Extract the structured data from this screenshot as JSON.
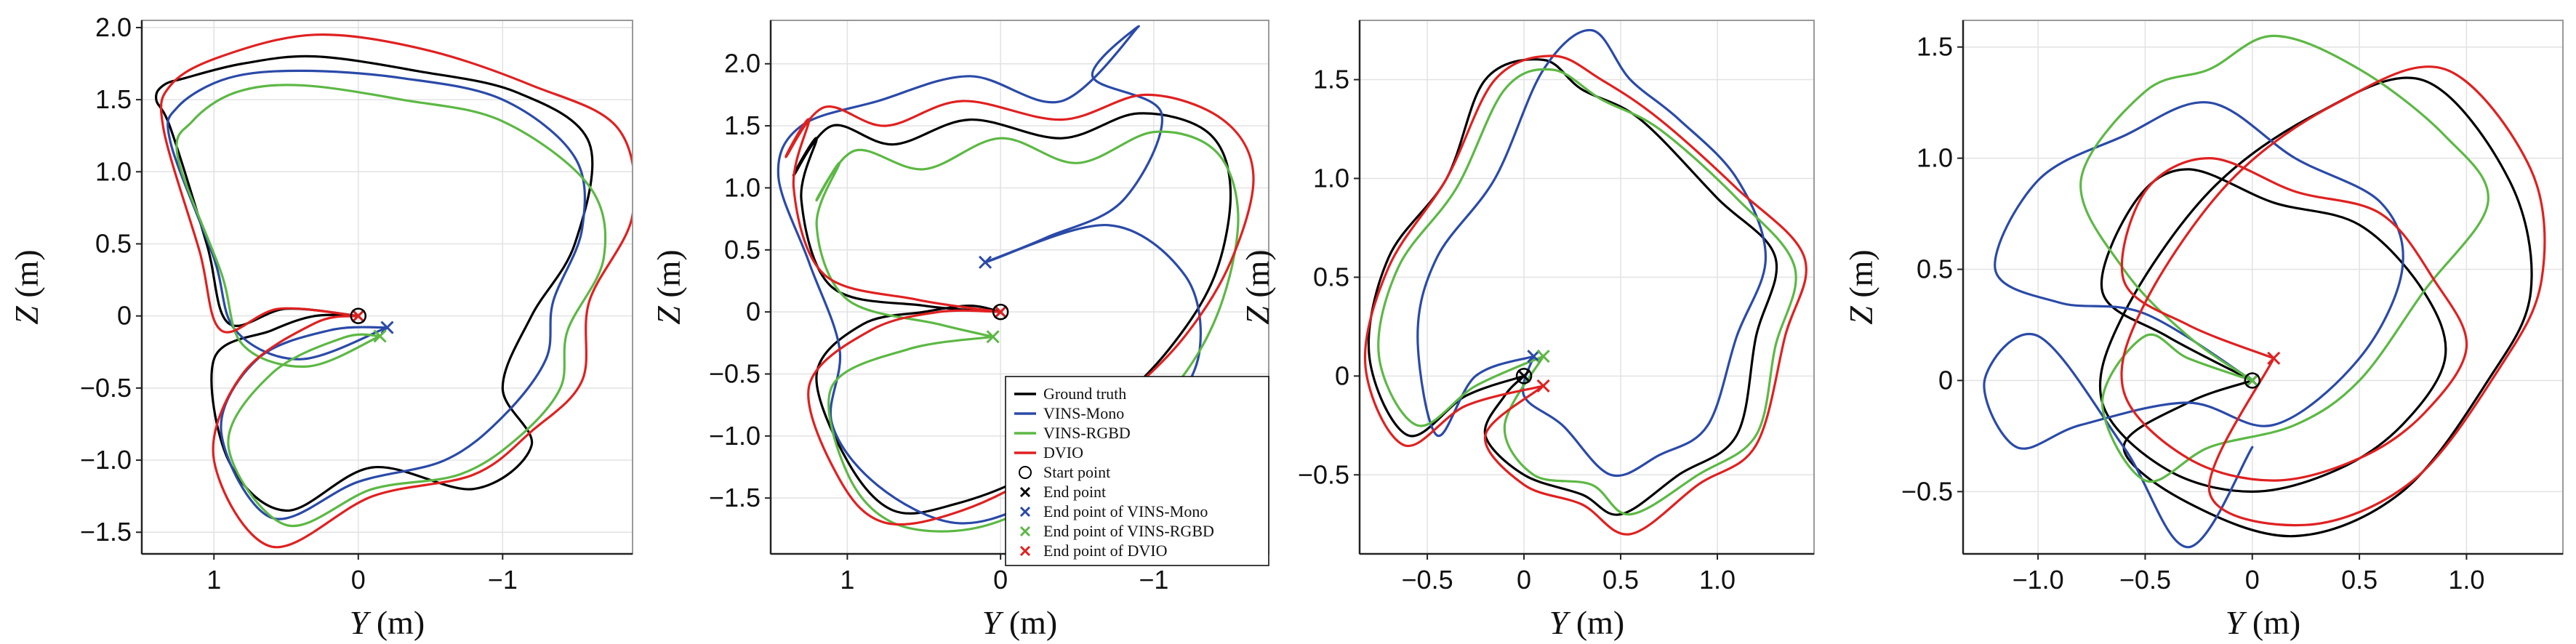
{
  "legend": {
    "entries": [
      {
        "label": "Ground truth",
        "kind": "line",
        "color": "#000000"
      },
      {
        "label": "VINS-Mono",
        "kind": "line",
        "color": "#2a4aa8"
      },
      {
        "label": "VINS-RGBD",
        "kind": "line",
        "color": "#5cb844"
      },
      {
        "label": "DVIO",
        "kind": "line",
        "color": "#e02020"
      },
      {
        "label": "Start point",
        "kind": "circle",
        "color": "#000000"
      },
      {
        "label": "End point",
        "kind": "x",
        "color": "#000000"
      },
      {
        "label": "End point of VINS-Mono",
        "kind": "x",
        "color": "#2a4aa8"
      },
      {
        "label": "End point of VINS-RGBD",
        "kind": "x",
        "color": "#5cb844"
      },
      {
        "label": "End point of DVIO",
        "kind": "x",
        "color": "#e02020"
      }
    ]
  },
  "chart_data": [
    {
      "type": "line",
      "xlabel_var": "Y",
      "xlabel_unit": " (m)",
      "ylabel_var": "Z",
      "ylabel_unit": " (m)",
      "xlim": [
        1.5,
        -1.9
      ],
      "ylim": [
        -1.65,
        2.05
      ],
      "xticks": [
        1,
        0,
        -1
      ],
      "xtick_labels": [
        "1",
        "0",
        "−1"
      ],
      "yticks": [
        -1.5,
        -1.0,
        -0.5,
        0,
        0.5,
        1.0,
        1.5,
        2.0
      ],
      "ytick_labels": [
        "−1.5",
        "−1.0",
        "−0.5",
        "0",
        "0.5",
        "1.0",
        "1.5",
        "2.0"
      ],
      "grid": true,
      "series": [
        {
          "color": "#000000",
          "x": [
            0.0,
            0.5,
            0.9,
            1.05,
            1.3,
            1.4,
            1.35,
            1.2,
            0.8,
            0.3,
            -0.4,
            -1.1,
            -1.6,
            -1.5,
            -1.2,
            -1.0,
            -1.2,
            -0.8,
            -0.1,
            0.5,
            0.9,
            1.0,
            0.6,
            0.3,
            0.0
          ],
          "y": [
            0.0,
            0.05,
            -0.05,
            0.5,
            1.3,
            1.5,
            1.6,
            1.65,
            1.75,
            1.8,
            1.7,
            1.55,
            1.2,
            0.5,
            0.0,
            -0.5,
            -0.9,
            -1.2,
            -1.05,
            -1.35,
            -1.0,
            -0.3,
            -0.1,
            0.0,
            0.0
          ]
        },
        {
          "color": "#2a4aa8",
          "x": [
            -0.2,
            0.4,
            0.85,
            1.0,
            1.3,
            1.25,
            0.9,
            0.4,
            -0.3,
            -1.0,
            -1.5,
            -1.55,
            -1.35,
            -1.3,
            -1.0,
            -0.6,
            0.0,
            0.6,
            0.95,
            0.7,
            0.2,
            -0.2
          ],
          "y": [
            -0.08,
            -0.3,
            -0.1,
            0.4,
            1.2,
            1.45,
            1.65,
            1.7,
            1.65,
            1.5,
            1.1,
            0.6,
            0.1,
            -0.3,
            -0.7,
            -1.0,
            -1.15,
            -1.4,
            -0.8,
            -0.3,
            -0.1,
            -0.08
          ]
        },
        {
          "color": "#5cb844",
          "x": [
            -0.15,
            0.35,
            0.8,
            0.95,
            1.25,
            1.15,
            0.85,
            0.4,
            -0.3,
            -1.0,
            -1.6,
            -1.7,
            -1.45,
            -1.4,
            -1.1,
            -0.7,
            -0.1,
            0.5,
            0.9,
            0.6,
            0.1,
            -0.15
          ],
          "y": [
            -0.14,
            -0.35,
            -0.2,
            0.3,
            1.1,
            1.35,
            1.55,
            1.6,
            1.5,
            1.35,
            0.9,
            0.4,
            -0.1,
            -0.5,
            -0.85,
            -1.1,
            -1.2,
            -1.45,
            -0.9,
            -0.4,
            -0.15,
            -0.14
          ]
        },
        {
          "color": "#e02020",
          "x": [
            0.0,
            0.55,
            0.95,
            1.1,
            1.35,
            1.3,
            0.95,
            0.3,
            -0.45,
            -1.2,
            -1.8,
            -1.9,
            -1.6,
            -1.55,
            -1.2,
            -0.8,
            -0.1,
            0.6,
            1.0,
            0.8,
            0.3,
            0.0
          ],
          "y": [
            0.0,
            0.05,
            -0.1,
            0.45,
            1.3,
            1.6,
            1.8,
            1.95,
            1.85,
            1.6,
            1.3,
            0.7,
            0.1,
            -0.45,
            -0.8,
            -1.1,
            -1.25,
            -1.6,
            -1.0,
            -0.4,
            -0.05,
            0.0
          ]
        }
      ],
      "start_point": [
        0.0,
        0.0
      ],
      "end_points": [
        {
          "color": "#000000",
          "x": 0.0,
          "y": 0.0
        },
        {
          "color": "#2a4aa8",
          "x": -0.2,
          "y": -0.08
        },
        {
          "color": "#5cb844",
          "x": -0.15,
          "y": -0.14
        },
        {
          "color": "#e02020",
          "x": 0.0,
          "y": 0.0
        }
      ]
    },
    {
      "type": "line",
      "xlabel_var": "Y",
      "xlabel_unit": " (m)",
      "ylabel_var": "Z",
      "ylabel_unit": " (m)",
      "xlim": [
        1.5,
        -1.75
      ],
      "ylim": [
        -1.95,
        2.35
      ],
      "xticks": [
        1,
        0,
        -1
      ],
      "xtick_labels": [
        "1",
        "0",
        "−1"
      ],
      "yticks": [
        -1.5,
        -1.0,
        -0.5,
        0,
        0.5,
        1.0,
        1.5,
        2.0
      ],
      "ytick_labels": [
        "−1.5",
        "−1.0",
        "−0.5",
        "0",
        "0.5",
        "1.0",
        "1.5",
        "2.0"
      ],
      "grid": true,
      "series": [
        {
          "color": "#000000",
          "x": [
            0.0,
            0.5,
            1.1,
            1.3,
            1.2,
            1.35,
            1.1,
            0.7,
            0.2,
            -0.4,
            -0.9,
            -1.35,
            -1.5,
            -1.4,
            -1.1,
            -0.7,
            -0.2,
            0.3,
            0.7,
            1.0,
            1.2,
            0.9,
            0.5,
            0.2,
            0.0
          ],
          "y": [
            0.0,
            0.05,
            0.2,
            0.9,
            1.4,
            1.1,
            1.5,
            1.35,
            1.55,
            1.4,
            1.6,
            1.45,
            1.0,
            0.3,
            -0.3,
            -0.8,
            -1.3,
            -1.55,
            -1.6,
            -1.2,
            -0.5,
            -0.1,
            0.0,
            0.05,
            0.0
          ]
        },
        {
          "color": "#2a4aa8",
          "x": [
            0.1,
            -0.3,
            -0.8,
            -1.05,
            -0.6,
            -0.9,
            -0.4,
            0.2,
            0.8,
            1.3,
            1.45,
            1.25,
            1.05,
            1.1,
            0.8,
            0.3,
            -0.2,
            -0.7,
            -1.1,
            -1.3,
            -1.2,
            -0.7,
            0.1
          ],
          "y": [
            0.4,
            0.6,
            0.9,
            1.6,
            1.9,
            2.3,
            1.7,
            1.9,
            1.7,
            1.5,
            1.1,
            0.4,
            -0.3,
            -0.9,
            -1.4,
            -1.7,
            -1.55,
            -1.2,
            -0.8,
            -0.3,
            0.3,
            0.7,
            0.4
          ]
        },
        {
          "color": "#5cb844",
          "x": [
            0.05,
            0.4,
            1.0,
            1.2,
            1.05,
            1.2,
            0.95,
            0.5,
            0.0,
            -0.5,
            -1.0,
            -1.4,
            -1.55,
            -1.45,
            -1.2,
            -0.8,
            -0.3,
            0.2,
            0.7,
            1.0,
            1.1,
            0.6,
            0.05
          ],
          "y": [
            -0.2,
            -0.1,
            0.1,
            0.7,
            1.2,
            0.9,
            1.3,
            1.15,
            1.4,
            1.2,
            1.45,
            1.3,
            0.8,
            0.1,
            -0.5,
            -1.0,
            -1.5,
            -1.75,
            -1.7,
            -1.3,
            -0.6,
            -0.3,
            -0.2
          ]
        },
        {
          "color": "#e02020",
          "x": [
            0.0,
            0.55,
            1.15,
            1.35,
            1.25,
            1.4,
            1.15,
            0.75,
            0.25,
            -0.4,
            -0.95,
            -1.45,
            -1.65,
            -1.5,
            -1.2,
            -0.8,
            -0.3,
            0.25,
            0.75,
            1.05,
            1.25,
            0.85,
            0.4,
            0.0
          ],
          "y": [
            0.0,
            0.1,
            0.3,
            1.0,
            1.55,
            1.25,
            1.65,
            1.5,
            1.7,
            1.55,
            1.75,
            1.55,
            1.1,
            0.4,
            -0.2,
            -0.7,
            -1.25,
            -1.6,
            -1.7,
            -1.35,
            -0.6,
            -0.15,
            0.0,
            0.0
          ]
        }
      ],
      "start_point": [
        0.0,
        0.0
      ],
      "end_points": [
        {
          "color": "#000000",
          "x": 0.0,
          "y": 0.0
        },
        {
          "color": "#2a4aa8",
          "x": 0.1,
          "y": 0.4
        },
        {
          "color": "#5cb844",
          "x": 0.05,
          "y": -0.2
        },
        {
          "color": "#e02020",
          "x": 0.0,
          "y": 0.0
        }
      ]
    },
    {
      "type": "line",
      "xlabel_var": "Y",
      "xlabel_unit": " (m)",
      "ylabel_var": "Z",
      "ylabel_unit": " (m)",
      "xlim": [
        -0.85,
        1.5
      ],
      "ylim": [
        -0.9,
        1.8
      ],
      "xticks": [
        -0.5,
        0,
        0.5,
        1.0
      ],
      "xtick_labels": [
        "−0.5",
        "0",
        "0.5",
        "1.0"
      ],
      "yticks": [
        -0.5,
        0,
        0.5,
        1.0,
        1.5
      ],
      "ytick_labels": [
        "−0.5",
        "0",
        "0.5",
        "1.0",
        "1.5"
      ],
      "grid": true,
      "series": [
        {
          "color": "#000000",
          "x": [
            0.0,
            -0.3,
            -0.6,
            -0.8,
            -0.7,
            -0.4,
            -0.2,
            0.1,
            0.3,
            0.6,
            1.0,
            1.3,
            1.2,
            1.1,
            0.8,
            0.5,
            0.3,
            0.0,
            -0.2,
            -0.1,
            0.0
          ],
          "y": [
            0.0,
            -0.1,
            -0.3,
            0.1,
            0.6,
            1.0,
            1.5,
            1.6,
            1.45,
            1.3,
            0.9,
            0.6,
            0.2,
            -0.3,
            -0.5,
            -0.7,
            -0.6,
            -0.5,
            -0.3,
            -0.1,
            0.0
          ]
        },
        {
          "color": "#2a4aa8",
          "x": [
            0.05,
            -0.25,
            -0.45,
            -0.55,
            -0.45,
            -0.15,
            0.1,
            0.35,
            0.55,
            0.8,
            1.1,
            1.25,
            1.1,
            0.95,
            0.7,
            0.45,
            0.2,
            0.0,
            0.05
          ],
          "y": [
            0.1,
            0.0,
            -0.3,
            0.2,
            0.6,
            1.0,
            1.55,
            1.75,
            1.5,
            1.3,
            1.0,
            0.6,
            0.2,
            -0.25,
            -0.4,
            -0.5,
            -0.25,
            -0.1,
            0.1
          ]
        },
        {
          "color": "#5cb844",
          "x": [
            0.1,
            -0.25,
            -0.55,
            -0.75,
            -0.65,
            -0.35,
            -0.1,
            0.15,
            0.4,
            0.7,
            1.1,
            1.4,
            1.3,
            1.2,
            0.9,
            0.55,
            0.35,
            0.05,
            -0.1,
            0.1
          ],
          "y": [
            0.1,
            -0.05,
            -0.25,
            0.1,
            0.55,
            0.95,
            1.45,
            1.55,
            1.4,
            1.25,
            0.9,
            0.55,
            0.15,
            -0.3,
            -0.5,
            -0.7,
            -0.55,
            -0.5,
            -0.25,
            0.1
          ]
        },
        {
          "color": "#e02020",
          "x": [
            0.1,
            -0.3,
            -0.62,
            -0.82,
            -0.7,
            -0.4,
            -0.15,
            0.15,
            0.4,
            0.7,
            1.1,
            1.45,
            1.35,
            1.2,
            0.9,
            0.55,
            0.3,
            0.0,
            -0.2,
            0.1
          ],
          "y": [
            -0.05,
            -0.15,
            -0.35,
            0.05,
            0.55,
            1.0,
            1.5,
            1.62,
            1.5,
            1.3,
            0.95,
            0.6,
            0.2,
            -0.35,
            -0.55,
            -0.8,
            -0.65,
            -0.55,
            -0.3,
            -0.05
          ]
        }
      ],
      "start_point": [
        0.0,
        0.0
      ],
      "end_points": [
        {
          "color": "#000000",
          "x": 0.0,
          "y": 0.0
        },
        {
          "color": "#2a4aa8",
          "x": 0.05,
          "y": 0.1
        },
        {
          "color": "#5cb844",
          "x": 0.1,
          "y": 0.1
        },
        {
          "color": "#e02020",
          "x": 0.1,
          "y": -0.05
        }
      ]
    },
    {
      "type": "line",
      "xlabel_var": "Y",
      "xlabel_unit": " (m)",
      "ylabel_var": "Z",
      "ylabel_unit": " (m)",
      "xlim": [
        -1.35,
        1.45
      ],
      "ylim": [
        -0.78,
        1.62
      ],
      "xticks": [
        -1.0,
        -0.5,
        0,
        0.5,
        1.0
      ],
      "xtick_labels": [
        "−1.0",
        "−0.5",
        "0",
        "0.5",
        "1.0"
      ],
      "yticks": [
        -0.5,
        0,
        0.5,
        1.0,
        1.5
      ],
      "ytick_labels": [
        "−0.5",
        "0",
        "0.5",
        "1.0",
        "1.5"
      ],
      "grid": true,
      "series": [
        {
          "color": "#000000",
          "x": [
            0.0,
            -0.4,
            -0.7,
            -0.55,
            -0.3,
            0.1,
            0.5,
            0.8,
            0.9,
            0.7,
            0.4,
            0.0,
            -0.4,
            -0.7,
            -0.6,
            -0.2,
            0.3,
            0.8,
            1.2,
            1.3,
            1.1,
            0.7,
            0.2,
            -0.3,
            -0.6,
            -0.3,
            0.0
          ],
          "y": [
            0.0,
            0.2,
            0.4,
            0.8,
            0.95,
            0.8,
            0.7,
            0.4,
            0.1,
            -0.2,
            -0.4,
            -0.5,
            -0.4,
            -0.1,
            0.3,
            0.85,
            1.2,
            1.35,
            0.9,
            0.4,
            0.0,
            -0.5,
            -0.7,
            -0.55,
            -0.3,
            -0.1,
            0.0
          ]
        },
        {
          "color": "#2a4aa8",
          "x": [
            0.0,
            -0.5,
            -0.9,
            -1.2,
            -1.0,
            -0.6,
            -0.2,
            0.2,
            0.6,
            0.7,
            0.5,
            0.1,
            -0.3,
            -0.8,
            -1.1,
            -1.25,
            -1.0,
            -0.6,
            -0.3,
            0.0
          ],
          "y": [
            0.0,
            0.3,
            0.35,
            0.5,
            0.9,
            1.1,
            1.25,
            1.0,
            0.8,
            0.5,
            0.1,
            -0.2,
            -0.1,
            -0.2,
            -0.3,
            0.0,
            0.2,
            -0.3,
            -0.75,
            -0.3
          ]
        },
        {
          "color": "#5cb844",
          "x": [
            0.0,
            -0.3,
            -0.6,
            -0.8,
            -0.5,
            -0.2,
            0.1,
            0.5,
            0.9,
            1.1,
            0.8,
            0.5,
            0.2,
            -0.2,
            -0.5,
            -0.7,
            -0.5,
            -0.3,
            0.0
          ],
          "y": [
            0.0,
            0.2,
            0.5,
            0.9,
            1.3,
            1.4,
            1.55,
            1.4,
            1.1,
            0.8,
            0.4,
            0.0,
            -0.2,
            -0.3,
            -0.45,
            -0.1,
            0.2,
            0.1,
            0.0
          ]
        },
        {
          "color": "#e02020",
          "x": [
            0.1,
            -0.3,
            -0.6,
            -0.5,
            -0.2,
            0.2,
            0.6,
            0.85,
            1.0,
            0.8,
            0.5,
            0.1,
            -0.3,
            -0.6,
            -0.5,
            -0.1,
            0.4,
            0.9,
            1.3,
            1.35,
            1.15,
            0.75,
            0.25,
            -0.2,
            0.1
          ],
          "y": [
            0.1,
            0.25,
            0.45,
            0.85,
            1.0,
            0.85,
            0.75,
            0.45,
            0.15,
            -0.15,
            -0.35,
            -0.45,
            -0.35,
            -0.05,
            0.35,
            0.9,
            1.25,
            1.4,
            0.95,
            0.45,
            0.05,
            -0.45,
            -0.65,
            -0.5,
            0.1
          ]
        }
      ],
      "start_point": [
        0.0,
        0.0
      ],
      "end_points": [
        {
          "color": "#000000",
          "x": 0.0,
          "y": 0.0
        },
        {
          "color": "#2a4aa8",
          "x": 0.0,
          "y": 0.0
        },
        {
          "color": "#5cb844",
          "x": 0.0,
          "y": 0.0
        },
        {
          "color": "#e02020",
          "x": 0.1,
          "y": 0.1
        }
      ]
    }
  ]
}
